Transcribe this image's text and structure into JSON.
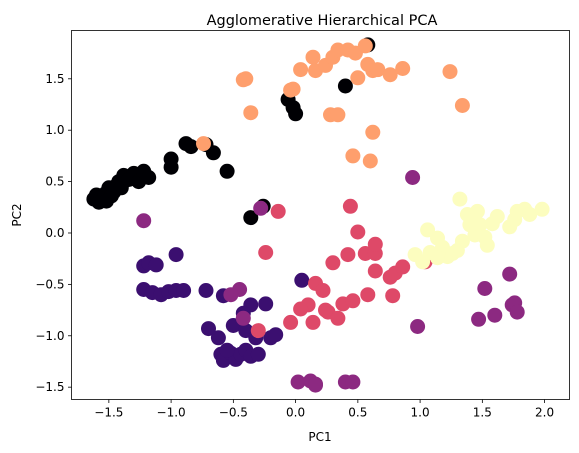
{
  "chart_data": {
    "type": "scatter",
    "title": "Agglomerative Hierarchical PCA",
    "xlabel": "PC1",
    "ylabel": "PC2",
    "xlim": [
      -1.8,
      2.2
    ],
    "ylim": [
      -1.62,
      1.97
    ],
    "xticks": [
      -1.5,
      -1.0,
      -0.5,
      0.0,
      0.5,
      1.0,
      1.5,
      2.0
    ],
    "xtick_labels": [
      "−1.5",
      "−1.0",
      "−0.5",
      "0.0",
      "0.5",
      "1.0",
      "1.5",
      "2.0"
    ],
    "yticks": [
      -1.5,
      -1.0,
      -0.5,
      0.0,
      0.5,
      1.0,
      1.5
    ],
    "ytick_labels": [
      "−1.5",
      "−1.0",
      "−0.5",
      "0.0",
      "0.5",
      "1.0",
      "1.5"
    ],
    "grid": false,
    "legend": false,
    "series": [
      {
        "color": "#000004",
        "points": [
          [
            -1.62,
            0.33
          ],
          [
            -1.6,
            0.37
          ],
          [
            -1.58,
            0.3
          ],
          [
            -1.56,
            0.35
          ],
          [
            -1.55,
            0.32
          ],
          [
            -1.53,
            0.38
          ],
          [
            -1.52,
            0.31
          ],
          [
            -1.5,
            0.44
          ],
          [
            -1.48,
            0.36
          ],
          [
            -1.46,
            0.4
          ],
          [
            -1.44,
            0.46
          ],
          [
            -1.42,
            0.5
          ],
          [
            -1.4,
            0.44
          ],
          [
            -1.38,
            0.56
          ],
          [
            -1.34,
            0.52
          ],
          [
            -1.3,
            0.58
          ],
          [
            -1.26,
            0.5
          ],
          [
            -1.22,
            0.6
          ],
          [
            -1.18,
            0.54
          ],
          [
            -1.0,
            0.72
          ],
          [
            -1.0,
            0.64
          ],
          [
            -0.88,
            0.87
          ],
          [
            -0.84,
            0.84
          ],
          [
            -0.72,
            0.86
          ],
          [
            -0.66,
            0.78
          ],
          [
            -0.55,
            0.6
          ],
          [
            -0.36,
            0.15
          ],
          [
            -0.26,
            0.26
          ],
          [
            -0.06,
            1.3
          ],
          [
            -0.02,
            1.22
          ],
          [
            0.0,
            1.16
          ],
          [
            0.4,
            1.43
          ],
          [
            0.58,
            1.83
          ]
        ]
      },
      {
        "color": "#3b0f70",
        "points": [
          [
            -1.22,
            -0.32
          ],
          [
            -1.18,
            -0.29
          ],
          [
            -1.12,
            -0.31
          ],
          [
            -0.96,
            -0.21
          ],
          [
            -1.22,
            -0.55
          ],
          [
            -1.15,
            -0.58
          ],
          [
            -1.08,
            -0.6
          ],
          [
            -1.02,
            -0.57
          ],
          [
            -0.96,
            -0.56
          ],
          [
            -0.9,
            -0.56
          ],
          [
            -0.72,
            -0.56
          ],
          [
            -0.58,
            -0.61
          ],
          [
            -0.36,
            -0.7
          ],
          [
            -0.42,
            -0.78
          ],
          [
            -0.24,
            -0.69
          ],
          [
            -0.5,
            -0.9
          ],
          [
            -0.4,
            -0.95
          ],
          [
            -0.32,
            -1.02
          ],
          [
            -0.2,
            -1.02
          ],
          [
            -0.16,
            -0.99
          ],
          [
            -0.7,
            -0.93
          ],
          [
            -0.62,
            -1.02
          ],
          [
            -0.6,
            -1.18
          ],
          [
            -0.58,
            -1.24
          ],
          [
            -0.52,
            -1.17
          ],
          [
            -0.48,
            -1.23
          ],
          [
            -0.44,
            -1.18
          ],
          [
            -0.4,
            -1.14
          ],
          [
            -0.36,
            -1.2
          ],
          [
            -0.3,
            -1.18
          ],
          [
            -0.55,
            -1.14
          ],
          [
            0.05,
            -0.46
          ]
        ]
      },
      {
        "color": "#8c2981",
        "points": [
          [
            -1.22,
            0.12
          ],
          [
            -0.28,
            0.24
          ],
          [
            -0.45,
            -0.55
          ],
          [
            -0.52,
            -0.6
          ],
          [
            -0.42,
            -0.83
          ],
          [
            0.94,
            0.54
          ],
          [
            0.98,
            -0.91
          ],
          [
            1.47,
            -0.84
          ],
          [
            1.52,
            -0.54
          ],
          [
            1.72,
            -0.4
          ],
          [
            1.74,
            -0.7
          ],
          [
            1.76,
            -0.68
          ],
          [
            1.78,
            -0.77
          ],
          [
            1.6,
            -0.8
          ],
          [
            0.02,
            -1.45
          ],
          [
            0.12,
            -1.44
          ],
          [
            0.16,
            -1.47
          ],
          [
            0.4,
            -1.45
          ],
          [
            0.46,
            -1.45
          ],
          [
            0.16,
            -1.48
          ]
        ]
      },
      {
        "color": "#de4968",
        "points": [
          [
            -0.14,
            0.21
          ],
          [
            -0.24,
            -0.19
          ],
          [
            -0.3,
            -0.95
          ],
          [
            -0.04,
            -0.87
          ],
          [
            0.1,
            -0.7
          ],
          [
            0.16,
            -0.49
          ],
          [
            0.22,
            -0.56
          ],
          [
            0.26,
            -0.77
          ],
          [
            0.3,
            -0.29
          ],
          [
            0.34,
            -0.83
          ],
          [
            0.38,
            -0.69
          ],
          [
            0.46,
            -0.66
          ],
          [
            0.42,
            -0.21
          ],
          [
            0.44,
            0.26
          ],
          [
            0.5,
            0.01
          ],
          [
            0.56,
            -0.2
          ],
          [
            0.58,
            -0.6
          ],
          [
            0.64,
            -0.37
          ],
          [
            0.64,
            -0.2
          ],
          [
            0.76,
            -0.43
          ],
          [
            0.78,
            -0.61
          ],
          [
            0.8,
            -0.39
          ],
          [
            0.86,
            -0.33
          ],
          [
            1.04,
            -0.28
          ],
          [
            0.24,
            -0.75
          ],
          [
            0.14,
            -0.87
          ],
          [
            0.04,
            -0.74
          ],
          [
            0.64,
            -0.11
          ]
        ]
      },
      {
        "color": "#fe9f6d",
        "points": [
          [
            -0.42,
            1.49
          ],
          [
            -0.4,
            1.5
          ],
          [
            -0.36,
            1.17
          ],
          [
            -0.04,
            1.39
          ],
          [
            -0.02,
            1.4
          ],
          [
            0.04,
            1.59
          ],
          [
            0.14,
            1.71
          ],
          [
            0.16,
            1.58
          ],
          [
            0.24,
            1.63
          ],
          [
            0.3,
            1.71
          ],
          [
            0.34,
            1.78
          ],
          [
            0.42,
            1.78
          ],
          [
            0.48,
            1.75
          ],
          [
            0.5,
            1.51
          ],
          [
            0.56,
            1.82
          ],
          [
            0.58,
            1.64
          ],
          [
            0.62,
            1.58
          ],
          [
            0.66,
            1.59
          ],
          [
            0.76,
            1.54
          ],
          [
            0.86,
            1.6
          ],
          [
            0.28,
            1.15
          ],
          [
            0.34,
            1.15
          ],
          [
            0.62,
            0.98
          ],
          [
            0.46,
            0.75
          ],
          [
            0.6,
            0.7
          ],
          [
            1.24,
            1.57
          ],
          [
            1.34,
            1.24
          ],
          [
            -0.74,
            0.87
          ]
        ]
      },
      {
        "color": "#fcfdbf",
        "points": [
          [
            1.06,
            0.03
          ],
          [
            1.08,
            -0.19
          ],
          [
            1.14,
            -0.05
          ],
          [
            1.18,
            -0.14
          ],
          [
            1.22,
            -0.23
          ],
          [
            1.26,
            -0.2
          ],
          [
            1.3,
            -0.17
          ],
          [
            1.34,
            -0.08
          ],
          [
            1.32,
            0.33
          ],
          [
            1.38,
            0.18
          ],
          [
            1.4,
            0.08
          ],
          [
            1.44,
            -0.02
          ],
          [
            1.46,
            0.21
          ],
          [
            1.48,
            0.08
          ],
          [
            1.52,
            -0.04
          ],
          [
            1.54,
            -0.12
          ],
          [
            1.58,
            0.09
          ],
          [
            1.62,
            0.16
          ],
          [
            1.72,
            0.06
          ],
          [
            1.76,
            0.13
          ],
          [
            1.78,
            0.21
          ],
          [
            1.84,
            0.23
          ],
          [
            1.88,
            0.18
          ],
          [
            1.98,
            0.23
          ],
          [
            0.96,
            -0.21
          ],
          [
            1.02,
            -0.28
          ],
          [
            1.14,
            -0.24
          ],
          [
            1.42,
            0.12
          ]
        ]
      }
    ]
  }
}
